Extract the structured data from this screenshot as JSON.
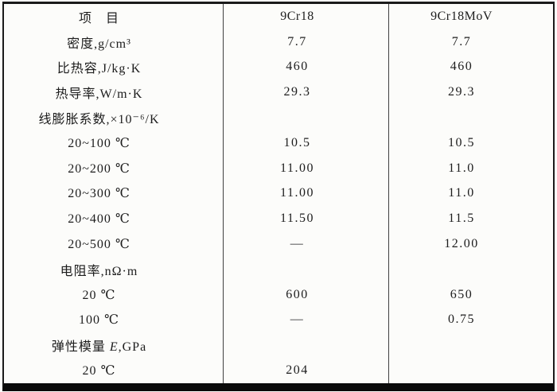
{
  "colors": {
    "background": "#fcfcfa",
    "text": "#1d1d1d",
    "frame_border": "#1a1a1a",
    "bottom_rule": "#0a0a0a",
    "column_rule": "#404040"
  },
  "table": {
    "header": {
      "item": "项　目",
      "col_9cr18": "9Cr18",
      "col_9cr18mov": "9Cr18MoV"
    },
    "rows": [
      {
        "label": "密度,g/cm³",
        "v_9cr18": "7.7",
        "v_9cr18mov": "7.7"
      },
      {
        "label": "比热容,J/kg·K",
        "v_9cr18": "460",
        "v_9cr18mov": "460"
      },
      {
        "label": "热导率,W/m·K",
        "v_9cr18": "29.3",
        "v_9cr18mov": "29.3"
      },
      {
        "label": "线膨胀系数,×10⁻⁶/K",
        "v_9cr18": "",
        "v_9cr18mov": ""
      },
      {
        "label": "20~100 ℃",
        "v_9cr18": "10.5",
        "v_9cr18mov": "10.5"
      },
      {
        "label": "20~200 ℃",
        "v_9cr18": "11.00",
        "v_9cr18mov": "11.0"
      },
      {
        "label": "20~300 ℃",
        "v_9cr18": "11.00",
        "v_9cr18mov": "11.0"
      },
      {
        "label": "20~400 ℃",
        "v_9cr18": "11.50",
        "v_9cr18mov": "11.5"
      },
      {
        "label": "20~500 ℃",
        "v_9cr18": "—",
        "v_9cr18mov": "12.00"
      },
      {
        "label": "电阻率,nΩ·m",
        "v_9cr18": "",
        "v_9cr18mov": ""
      },
      {
        "label": "20 ℃",
        "v_9cr18": "600",
        "v_9cr18mov": "650"
      },
      {
        "label": "100 ℃",
        "v_9cr18": "—",
        "v_9cr18mov": "0.75"
      },
      {
        "label_pre": "弹性模量 ",
        "label_em": "E",
        "label_post": ",GPa",
        "v_9cr18": "",
        "v_9cr18mov": ""
      },
      {
        "label": "20 ℃",
        "v_9cr18": "204",
        "v_9cr18mov": ""
      }
    ]
  }
}
